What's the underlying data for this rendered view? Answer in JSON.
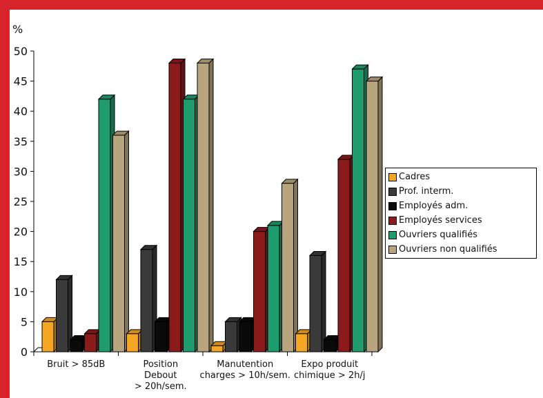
{
  "chart_data": {
    "type": "bar",
    "ylabel": "%",
    "ylim": [
      0,
      50
    ],
    "yticks": [
      0,
      5,
      10,
      15,
      20,
      25,
      30,
      35,
      40,
      45,
      50
    ],
    "categories": [
      [
        "Bruit > 85dB"
      ],
      [
        "Position",
        "Debout",
        "> 20h/sem."
      ],
      [
        "Manutention",
        "charges > 10h/sem."
      ],
      [
        "Expo produit",
        "chimique > 2h/j"
      ]
    ],
    "series": [
      {
        "name": "Cadres",
        "color": "#f5a623",
        "values": [
          5,
          3,
          1,
          3
        ]
      },
      {
        "name": "Prof. interm.",
        "color": "#3a3a3a",
        "values": [
          12,
          17,
          5,
          16
        ]
      },
      {
        "name": "Employés adm.",
        "color": "#0a0a0a",
        "values": [
          2,
          5,
          5,
          2
        ]
      },
      {
        "name": "Employés services",
        "color": "#8b1a1a",
        "values": [
          3,
          48,
          20,
          32
        ]
      },
      {
        "name": "Ouvriers qualifiés",
        "color": "#1f9c6e",
        "values": [
          42,
          42,
          21,
          47
        ]
      },
      {
        "name": "Ouvriers non qualifiés",
        "color": "#b8a57e",
        "values": [
          36,
          48,
          28,
          45
        ]
      }
    ],
    "legend_position": "right",
    "style": "3d"
  }
}
